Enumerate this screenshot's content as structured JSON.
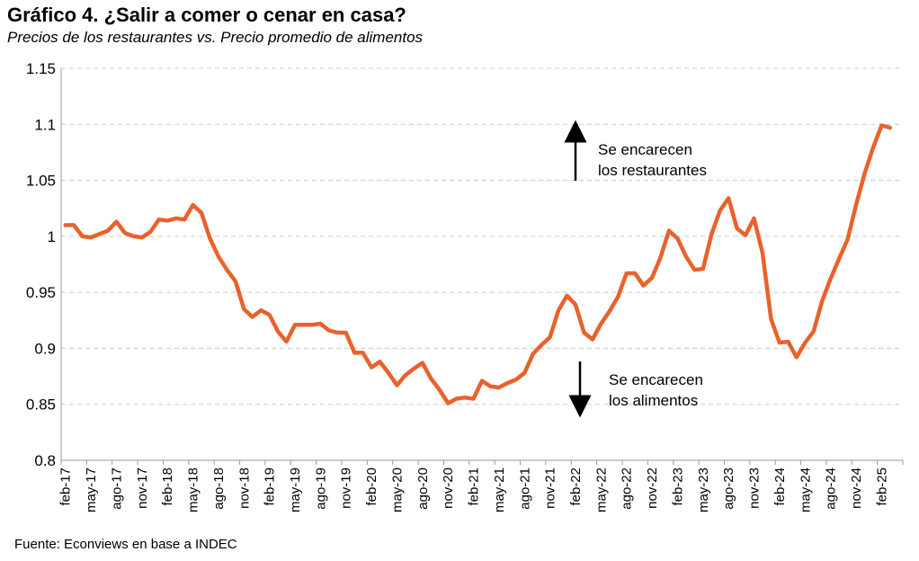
{
  "header": {
    "title": "Gráfico 4. ¿Salir a comer o cenar en casa?",
    "subtitle": "Precios de los restaurantes vs. Precio promedio de alimentos"
  },
  "footer": {
    "source": "Fuente: Econviews en base a INDEC"
  },
  "annotations": {
    "up": [
      "Se encarecen",
      "los restaurantes"
    ],
    "down": [
      "Se encarecen",
      "los alimentos"
    ]
  },
  "colors": {
    "line": "#E8622C",
    "grid": "#C8C8C8",
    "axis": "#999999"
  },
  "chart_data": {
    "type": "line",
    "ylim": [
      0.8,
      1.15
    ],
    "yticks": [
      "1.15",
      "1.1",
      "1.05",
      "1",
      "0.95",
      "0.9",
      "0.85",
      "0.8"
    ],
    "grid": true,
    "x_tick_labels": [
      "feb-17",
      "may-17",
      "ago-17",
      "nov-17",
      "feb-18",
      "may-18",
      "ago-18",
      "nov-18",
      "feb-19",
      "may-19",
      "ago-19",
      "nov-19",
      "feb-20",
      "may-20",
      "ago-20",
      "nov-20",
      "feb-21",
      "may-21",
      "ago-21",
      "nov-21",
      "feb-22",
      "may-22",
      "ago-22",
      "nov-22",
      "feb-23",
      "may-23",
      "ago-23",
      "nov-23",
      "feb-24",
      "may-24",
      "ago-24",
      "nov-24",
      "feb-25"
    ],
    "start": "feb-17",
    "end": "mar-25",
    "series": [
      {
        "values": [
          1.01,
          1.01,
          1.0,
          0.999,
          1.002,
          1.005,
          1.013,
          1.003,
          1.0,
          0.999,
          1.004,
          1.015,
          1.014,
          1.016,
          1.015,
          1.028,
          1.021,
          0.998,
          0.982,
          0.97,
          0.96,
          0.935,
          0.928,
          0.934,
          0.93,
          0.915,
          0.906,
          0.921,
          0.921,
          0.921,
          0.922,
          0.916,
          0.914,
          0.914,
          0.896,
          0.896,
          0.883,
          0.888,
          0.878,
          0.867,
          0.876,
          0.882,
          0.887,
          0.873,
          0.863,
          0.851,
          0.855,
          0.856,
          0.855,
          0.871,
          0.866,
          0.865,
          0.869,
          0.872,
          0.878,
          0.895,
          0.903,
          0.91,
          0.934,
          0.947,
          0.939,
          0.914,
          0.908,
          0.922,
          0.933,
          0.946,
          0.967,
          0.967,
          0.956,
          0.963,
          0.981,
          1.005,
          0.998,
          0.982,
          0.97,
          0.971,
          1.002,
          1.023,
          1.034,
          1.007,
          1.001,
          1.016,
          0.985,
          0.926,
          0.905,
          0.906,
          0.892,
          0.905,
          0.915,
          0.942,
          0.962,
          0.98,
          0.997,
          1.028,
          1.056,
          1.079,
          1.099,
          1.097
        ]
      }
    ]
  }
}
